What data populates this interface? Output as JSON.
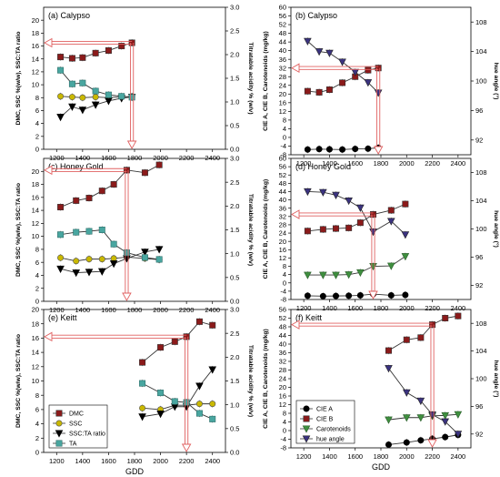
{
  "figure": {
    "xlabel_left": "GDD",
    "xlabel_right": "GDD",
    "left_ylabel": "DMC, SSC %(w/w), SSC:TA ratio",
    "left_y2label": "Titratable acidity % (w/v)",
    "right_ylabel": "CIE A, CIE B, Carotenoids (mg/kg)",
    "right_y2label": "hue angle (°)"
  },
  "colors": {
    "DMC": "#8b1a1a",
    "SSC": "#c9b800",
    "SSC_TA": "#000000",
    "TA": "#49a6a0",
    "CIE_A": "#000000",
    "CIE_B": "#8b1a1a",
    "Carotenoids": "#3f8f3f",
    "hue": "#3b3380",
    "arrow": "#e06060"
  },
  "chart_data": [
    {
      "id": "a",
      "type": "line",
      "title": "(a) Calypso",
      "xlim": [
        1100,
        2500
      ],
      "xticks": [
        1200,
        1400,
        1600,
        1800,
        2000,
        2200,
        2400
      ],
      "ylim": [
        0,
        22
      ],
      "yticks": [
        0,
        2,
        4,
        6,
        8,
        10,
        12,
        14,
        16,
        18,
        20
      ],
      "y2lim": [
        0,
        3
      ],
      "y2ticks": [
        "0.0",
        "0.5",
        "1.0",
        "1.5",
        "2.0",
        "2.5",
        "3.0"
      ],
      "series": [
        {
          "key": "DMC",
          "axis": "y",
          "x": [
            1230,
            1320,
            1400,
            1500,
            1600,
            1700,
            1780
          ],
          "values": [
            14.3,
            14.1,
            14.2,
            14.9,
            15.3,
            16.0,
            16.5
          ]
        },
        {
          "key": "SSC",
          "axis": "y",
          "x": [
            1230,
            1320,
            1400,
            1500,
            1600,
            1700,
            1780
          ],
          "values": [
            8.2,
            8.1,
            8.0,
            8.1,
            8.0,
            8.1,
            8.2
          ]
        },
        {
          "key": "SSC_TA",
          "axis": "y",
          "x": [
            1230,
            1320,
            1400,
            1500,
            1600,
            1700,
            1780
          ],
          "values": [
            5.0,
            6.6,
            6.1,
            6.9,
            7.5,
            7.9,
            8.1
          ]
        },
        {
          "key": "TA",
          "axis": "y2",
          "x": [
            1230,
            1320,
            1400,
            1500,
            1600,
            1700,
            1780
          ],
          "values": [
            1.67,
            1.38,
            1.4,
            1.23,
            1.15,
            1.12,
            1.1
          ]
        }
      ]
    },
    {
      "id": "b",
      "type": "line",
      "title": "(b) Calypso",
      "xlim": [
        1100,
        2500
      ],
      "xticks": [
        1200,
        1400,
        1600,
        1800,
        2000,
        2200,
        2400
      ],
      "ylim": [
        -8,
        60
      ],
      "yticks": [
        -8,
        -4,
        0,
        4,
        8,
        12,
        16,
        20,
        24,
        28,
        32,
        36,
        40,
        44,
        48,
        52,
        56,
        60
      ],
      "y2lim": [
        90,
        110
      ],
      "y2ticks": [
        92,
        96,
        100,
        104,
        108
      ],
      "series": [
        {
          "key": "CIE_A",
          "axis": "y",
          "x": [
            1230,
            1320,
            1400,
            1500,
            1600,
            1700,
            1780
          ],
          "values": [
            -5.6,
            -5.4,
            -5.5,
            -5.6,
            -5.3,
            -5.2,
            -4.8
          ]
        },
        {
          "key": "CIE_B",
          "axis": "y",
          "x": [
            1230,
            1320,
            1400,
            1500,
            1600,
            1700,
            1780
          ],
          "values": [
            21.3,
            20.8,
            22.0,
            25.2,
            28.0,
            31.0,
            32.0
          ]
        },
        {
          "key": "hue",
          "axis": "y2",
          "x": [
            1230,
            1320,
            1400,
            1500,
            1600,
            1700,
            1780
          ],
          "values": [
            105.4,
            104.0,
            103.8,
            102.6,
            101.2,
            99.8,
            98.4
          ]
        }
      ]
    },
    {
      "id": "c",
      "type": "line",
      "title": "(c) Honey Gold",
      "xlim": [
        1100,
        2500
      ],
      "xticks": [
        1200,
        1400,
        1600,
        1800,
        2000,
        2200,
        2400
      ],
      "ylim": [
        0,
        22
      ],
      "yticks": [
        0,
        2,
        4,
        6,
        8,
        10,
        12,
        14,
        16,
        18,
        20
      ],
      "y2lim": [
        0,
        3
      ],
      "y2ticks": [
        "0.0",
        "0.5",
        "1.0",
        "1.5",
        "2.0",
        "2.5",
        "3.0"
      ],
      "series": [
        {
          "key": "DMC",
          "axis": "y",
          "x": [
            1230,
            1350,
            1450,
            1550,
            1640,
            1740,
            1880,
            1990
          ],
          "values": [
            14.5,
            15.5,
            15.9,
            17.0,
            18.0,
            20.2,
            19.8,
            21.0
          ]
        },
        {
          "key": "SSC",
          "axis": "y",
          "x": [
            1230,
            1350,
            1450,
            1550,
            1640,
            1740,
            1880,
            1990
          ],
          "values": [
            6.7,
            6.2,
            6.5,
            6.5,
            6.6,
            6.8,
            6.6,
            6.4
          ]
        },
        {
          "key": "SSC_TA",
          "axis": "y",
          "x": [
            1230,
            1350,
            1450,
            1550,
            1640,
            1740,
            1880,
            1990
          ],
          "values": [
            5.0,
            4.4,
            4.5,
            4.6,
            5.8,
            6.6,
            7.6,
            8.0
          ]
        },
        {
          "key": "TA",
          "axis": "y2",
          "x": [
            1230,
            1350,
            1450,
            1550,
            1640,
            1740,
            1880,
            1990
          ],
          "values": [
            1.4,
            1.45,
            1.47,
            1.5,
            1.2,
            1.02,
            0.92,
            0.88
          ]
        }
      ]
    },
    {
      "id": "d",
      "type": "line",
      "title": "(d) Honey Gold",
      "xlim": [
        1100,
        2500
      ],
      "xticks": [
        1200,
        1400,
        1600,
        1800,
        2000,
        2200,
        2400
      ],
      "ylim": [
        -8,
        60
      ],
      "yticks": [
        -8,
        -4,
        0,
        4,
        8,
        12,
        16,
        20,
        24,
        28,
        32,
        36,
        40,
        44,
        48,
        52,
        56,
        60
      ],
      "y2lim": [
        90,
        110
      ],
      "y2ticks": [
        92,
        96,
        100,
        104,
        108
      ],
      "series": [
        {
          "key": "CIE_A",
          "axis": "y",
          "x": [
            1230,
            1350,
            1450,
            1550,
            1640,
            1740,
            1880,
            1990
          ],
          "values": [
            -6.2,
            -6.4,
            -6.3,
            -6.2,
            -6.0,
            -5.4,
            -6.0,
            -5.8
          ]
        },
        {
          "key": "CIE_B",
          "axis": "y",
          "x": [
            1230,
            1350,
            1450,
            1550,
            1640,
            1740,
            1880,
            1990
          ],
          "values": [
            25.0,
            25.8,
            26.2,
            26.5,
            29.0,
            33.0,
            35.0,
            38.0
          ]
        },
        {
          "key": "Carotenoids",
          "axis": "y",
          "x": [
            1230,
            1350,
            1450,
            1550,
            1640,
            1740,
            1880,
            1990
          ],
          "values": [
            3.8,
            3.8,
            3.8,
            4.0,
            5.0,
            8.0,
            8.2,
            12.8
          ]
        },
        {
          "key": "hue",
          "axis": "y2",
          "x": [
            1230,
            1350,
            1450,
            1550,
            1640,
            1740,
            1880,
            1990
          ],
          "values": [
            105.3,
            105.2,
            104.8,
            104.0,
            103.0,
            99.6,
            101.1,
            99.2
          ]
        }
      ]
    },
    {
      "id": "e",
      "type": "line",
      "title": "(e) Keitt",
      "xlim": [
        1100,
        2500
      ],
      "xticks": [
        1200,
        1400,
        1600,
        1800,
        2000,
        2200,
        2400
      ],
      "ylim": [
        0,
        20
      ],
      "yticks": [
        0,
        2,
        4,
        6,
        8,
        10,
        12,
        14,
        16,
        18,
        20
      ],
      "y2lim": [
        0,
        3
      ],
      "y2ticks": [
        "0.0",
        "0.5",
        "1.0",
        "1.5",
        "2.0",
        "2.5",
        "3.0"
      ],
      "legend": {
        "placement": "bottom-left",
        "entries": [
          "DMC",
          "SSC",
          "SSC:TA ratio",
          "TA"
        ]
      },
      "series": [
        {
          "key": "DMC",
          "axis": "y",
          "x": [
            1860,
            2000,
            2110,
            2200,
            2300,
            2400
          ],
          "values": [
            12.6,
            14.7,
            15.5,
            16.2,
            18.3,
            17.8
          ]
        },
        {
          "key": "SSC",
          "axis": "y",
          "x": [
            1860,
            2000,
            2110,
            2200,
            2300,
            2400
          ],
          "values": [
            6.2,
            6.0,
            6.6,
            6.6,
            6.8,
            6.8
          ]
        },
        {
          "key": "SSC_TA",
          "axis": "y",
          "x": [
            1860,
            2000,
            2110,
            2200,
            2300,
            2400
          ],
          "values": [
            5.0,
            5.4,
            6.4,
            6.4,
            9.3,
            11.6
          ]
        },
        {
          "key": "TA",
          "axis": "y2",
          "x": [
            1860,
            2000,
            2110,
            2200,
            2300,
            2400
          ],
          "values": [
            1.45,
            1.25,
            1.07,
            1.05,
            0.82,
            0.7
          ]
        }
      ]
    },
    {
      "id": "f",
      "type": "line",
      "title": "(f) Keitt",
      "xlim": [
        1100,
        2500
      ],
      "xticks": [
        1200,
        1400,
        1600,
        1800,
        2000,
        2200,
        2400
      ],
      "ylim": [
        -8,
        56
      ],
      "yticks": [
        -8,
        -4,
        0,
        4,
        8,
        12,
        16,
        20,
        24,
        28,
        32,
        36,
        40,
        44,
        48,
        52,
        56
      ],
      "y2lim": [
        90,
        110
      ],
      "y2ticks": [
        92,
        96,
        100,
        104,
        108
      ],
      "legend": {
        "placement": "bottom-left",
        "entries": [
          "CIE A",
          "CIE B",
          "Carotenoids",
          "hue angle"
        ]
      },
      "series": [
        {
          "key": "CIE_A",
          "axis": "y",
          "x": [
            1860,
            2000,
            2110,
            2200,
            2300,
            2400
          ],
          "values": [
            -6.5,
            -5.5,
            -4.5,
            -3.8,
            -3.0,
            -2.0
          ]
        },
        {
          "key": "CIE_B",
          "axis": "y",
          "x": [
            1860,
            2000,
            2110,
            2200,
            2300,
            2400
          ],
          "values": [
            37.0,
            42.0,
            43.0,
            49.0,
            52.0,
            53.0
          ]
        },
        {
          "key": "Carotenoids",
          "axis": "y",
          "x": [
            1860,
            2000,
            2110,
            2200,
            2300,
            2400
          ],
          "values": [
            5.0,
            6.0,
            6.0,
            6.8,
            7.0,
            7.5
          ]
        },
        {
          "key": "hue",
          "axis": "y2",
          "x": [
            1860,
            2000,
            2110,
            2200,
            2300,
            2400
          ],
          "values": [
            101.5,
            98.0,
            96.8,
            94.8,
            93.8,
            92.0
          ]
        }
      ]
    }
  ]
}
